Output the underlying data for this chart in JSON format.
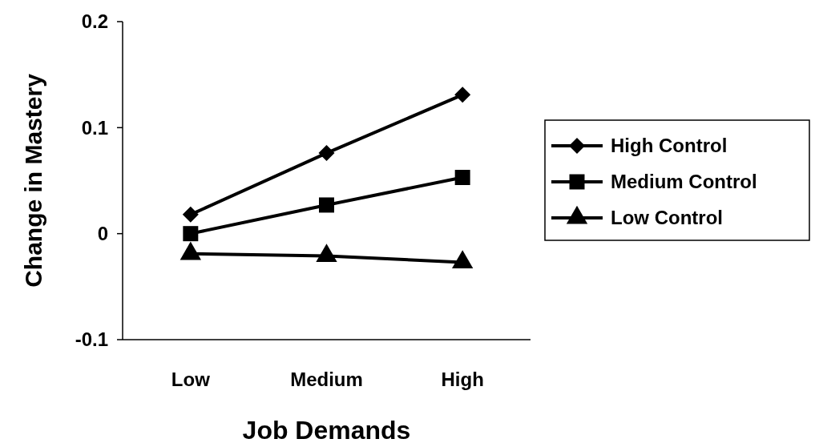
{
  "chart_data": {
    "type": "line",
    "xlabel": "Job Demands",
    "ylabel": "Change in Mastery",
    "categories": [
      "Low",
      "Medium",
      "High"
    ],
    "series": [
      {
        "name": "High Control",
        "color": "#000000",
        "marker": "diamond",
        "values": [
          0.018,
          0.076,
          0.131
        ]
      },
      {
        "name": "Medium Control",
        "color": "#000000",
        "marker": "square",
        "values": [
          0,
          0.027,
          0.053
        ]
      },
      {
        "name": "Low Control",
        "color": "#000000",
        "marker": "triangle",
        "values": [
          -0.019,
          -0.021,
          -0.027
        ]
      }
    ],
    "ylim": [
      -0.1,
      0.2
    ],
    "yticks": [
      -0.1,
      0,
      0.1,
      0.2
    ],
    "legend": "right",
    "grid": false,
    "line_style": "solid"
  }
}
